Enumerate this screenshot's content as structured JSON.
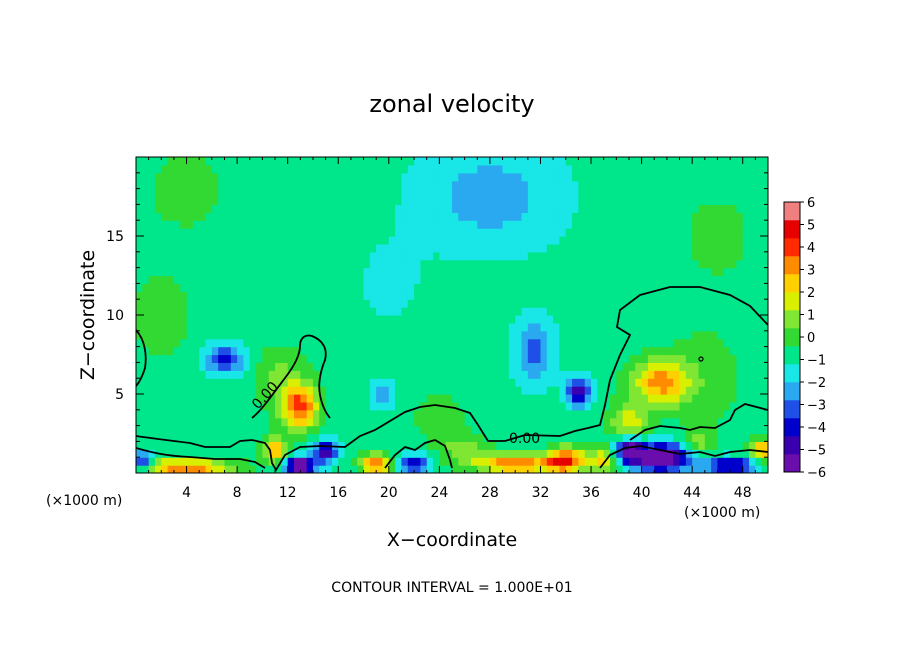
{
  "chart_data": {
    "type": "heatmap",
    "title": "zonal velocity",
    "xlabel": "X−coordinate",
    "ylabel": "Z−coordinate",
    "x_unit_label": "(×1000 m)",
    "y_unit_label": "(×1000 m)",
    "footer": "CONTOUR INTERVAL = 1.000E+01",
    "contour_label_value": "0.00",
    "xlim": [
      0,
      50
    ],
    "ylim": [
      0,
      20
    ],
    "x_ticks": [
      4,
      8,
      12,
      16,
      20,
      24,
      28,
      32,
      36,
      40,
      44,
      48
    ],
    "x_tick_labels": [
      "4",
      "8",
      "12",
      "16",
      "20",
      "24",
      "28",
      "32",
      "36",
      "40",
      "44",
      "48"
    ],
    "y_ticks": [
      5,
      10,
      15
    ],
    "y_tick_labels": [
      "5",
      "10",
      "15"
    ],
    "colorbar": {
      "range": [
        -6,
        6
      ],
      "ticks": [
        6,
        5,
        4,
        3,
        2,
        1,
        0,
        -1,
        -2,
        -3,
        -4,
        -5,
        -6
      ],
      "tick_labels": [
        "6",
        "5",
        "4",
        "3",
        "2",
        "1",
        "0",
        "−1",
        "−2",
        "−3",
        "−4",
        "−5",
        "−6"
      ],
      "colors": [
        "#6a0dad",
        "#3a00b0",
        "#0000cd",
        "#1e4fe6",
        "#2aa9f0",
        "#19e6e6",
        "#00e68a",
        "#33d933",
        "#7fe633",
        "#d8f000",
        "#ffd000",
        "#ff8c00",
        "#ff2a00",
        "#e60000",
        "#f08080"
      ]
    },
    "background_value": -0.8,
    "features": [
      {
        "x": 7,
        "y": 7.2,
        "value": -3.0,
        "sx": 1.6,
        "sy": 1.0
      },
      {
        "x": 13,
        "y": 4.2,
        "value": 4.6,
        "sx": 1.4,
        "sy": 1.4
      },
      {
        "x": 11.5,
        "y": 6.0,
        "value": 1.4,
        "sx": 2.0,
        "sy": 2.0
      },
      {
        "x": 19.5,
        "y": 5.0,
        "value": -1.8,
        "sx": 1.0,
        "sy": 1.0
      },
      {
        "x": 31.5,
        "y": 7.8,
        "value": -2.2,
        "sx": 1.6,
        "sy": 2.2
      },
      {
        "x": 35,
        "y": 5.2,
        "value": -4.0,
        "sx": 1.0,
        "sy": 0.9
      },
      {
        "x": 41.5,
        "y": 5.8,
        "value": 4.0,
        "sx": 2.2,
        "sy": 1.4
      },
      {
        "x": 39,
        "y": 3.3,
        "value": 2.5,
        "sx": 1.5,
        "sy": 1.2
      },
      {
        "x": 45,
        "y": 6.0,
        "value": 0.8,
        "sx": 3.0,
        "sy": 3.5
      },
      {
        "x": 24,
        "y": 3.5,
        "value": 1.0,
        "sx": 2.0,
        "sy": 1.5
      },
      {
        "x": 28,
        "y": 17.5,
        "value": -1.6,
        "sx": 6.0,
        "sy": 3.5
      },
      {
        "x": 4,
        "y": 18,
        "value": 0.9,
        "sx": 3.0,
        "sy": 2.5
      },
      {
        "x": 2,
        "y": 10,
        "value": 0.8,
        "sx": 2.5,
        "sy": 3.0
      },
      {
        "x": 46,
        "y": 15,
        "value": 0.7,
        "sx": 3.0,
        "sy": 3.0
      },
      {
        "x": 20,
        "y": 12,
        "value": -0.6,
        "sx": 3.0,
        "sy": 3.0
      },
      {
        "x": 13,
        "y": 0.5,
        "value": -6.0,
        "sx": 1.2,
        "sy": 0.5
      },
      {
        "x": 11,
        "y": 1.5,
        "value": 3.5,
        "sx": 1.0,
        "sy": 0.8
      },
      {
        "x": 15,
        "y": 1.4,
        "value": -4.5,
        "sx": 1.0,
        "sy": 0.7
      },
      {
        "x": 4,
        "y": 0.4,
        "value": 4.5,
        "sx": 3.5,
        "sy": 0.5
      },
      {
        "x": 0.5,
        "y": 0.8,
        "value": -4.0,
        "sx": 0.8,
        "sy": 0.6
      },
      {
        "x": 22,
        "y": 0.6,
        "value": -4.0,
        "sx": 1.2,
        "sy": 0.6
      },
      {
        "x": 19,
        "y": 0.6,
        "value": 4.5,
        "sx": 1.2,
        "sy": 0.6
      },
      {
        "x": 30,
        "y": 0.6,
        "value": 4.5,
        "sx": 3.0,
        "sy": 0.6
      },
      {
        "x": 34,
        "y": 0.8,
        "value": 5.2,
        "sx": 1.5,
        "sy": 0.8
      },
      {
        "x": 37,
        "y": 0.8,
        "value": 3.0,
        "sx": 1.0,
        "sy": 0.8
      },
      {
        "x": 41.5,
        "y": 1.0,
        "value": -6.0,
        "sx": 2.5,
        "sy": 0.9
      },
      {
        "x": 39,
        "y": 1.5,
        "value": -4.5,
        "sx": 1.0,
        "sy": 0.7
      },
      {
        "x": 47,
        "y": 0.5,
        "value": -4.5,
        "sx": 2.0,
        "sy": 0.5
      },
      {
        "x": 49.5,
        "y": 1.5,
        "value": 3.5,
        "sx": 1.0,
        "sy": 0.7
      },
      {
        "x": 44.5,
        "y": 1.8,
        "value": 1.8,
        "sx": 1.2,
        "sy": 0.8
      },
      {
        "x": 26,
        "y": 1.5,
        "value": 1.6,
        "sx": 2.0,
        "sy": 0.9
      }
    ]
  }
}
